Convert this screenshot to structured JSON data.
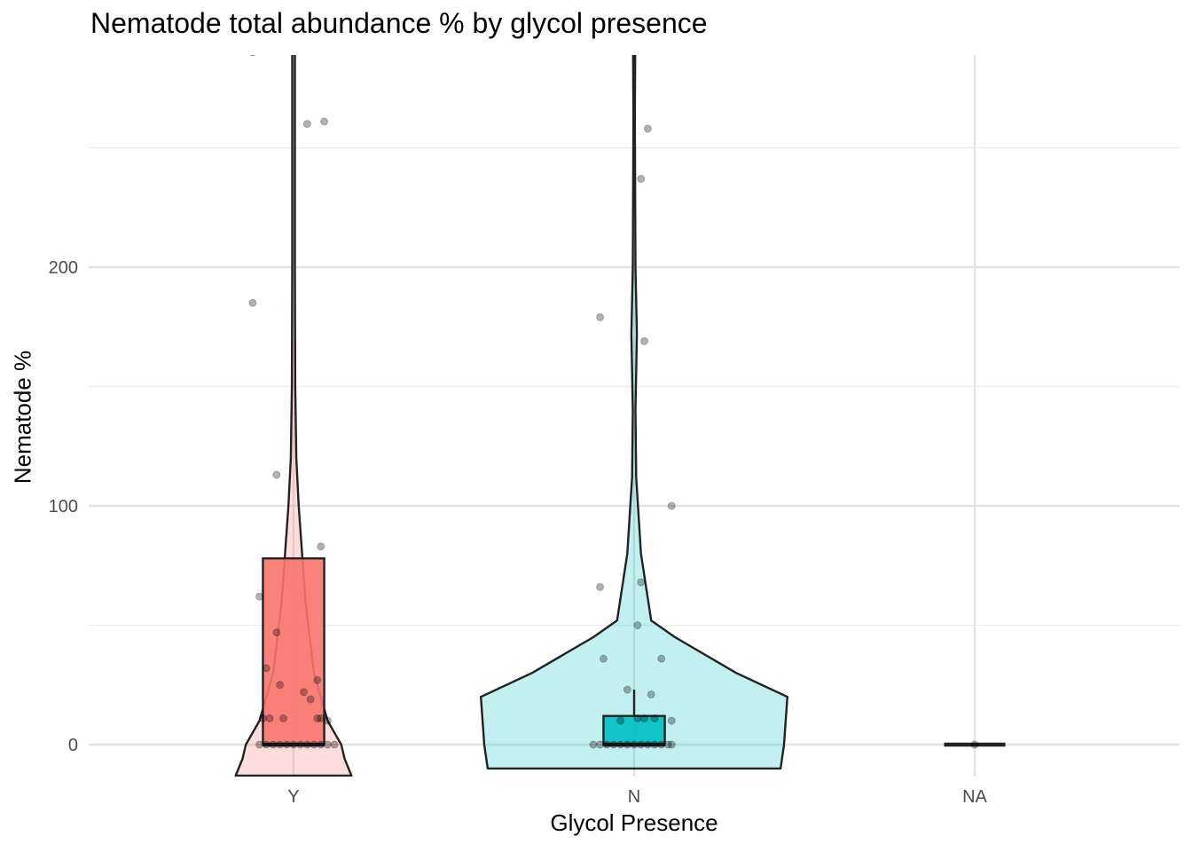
{
  "chart_data": {
    "type": "violin",
    "title": "Nematode total abundance % by glycol presence",
    "xlabel": "Glycol Presence",
    "ylabel": "Nematode %",
    "categories": [
      "Y",
      "N",
      "NA"
    ],
    "ylim": [
      -13,
      290
    ],
    "y_ticks": [
      0,
      100,
      200
    ],
    "grid": true,
    "legend": "none",
    "series": [
      {
        "category": "Y",
        "color": "#F8766D",
        "box": {
          "min": 0,
          "q1": 0,
          "median": 0,
          "q3": 78,
          "max": 78
        },
        "violin_profile": [
          [
            -13,
            0.17
          ],
          [
            -6,
            0.15
          ],
          [
            0,
            0.14
          ],
          [
            10,
            0.1
          ],
          [
            30,
            0.06
          ],
          [
            60,
            0.035
          ],
          [
            80,
            0.025
          ],
          [
            100,
            0.015
          ],
          [
            120,
            0.008
          ],
          [
            150,
            0.005
          ],
          [
            200,
            0.004
          ],
          [
            290,
            0.004
          ]
        ],
        "points": [
          [
            -0.12,
            290
          ],
          [
            0.04,
            260
          ],
          [
            0.09,
            261
          ],
          [
            -0.12,
            185
          ],
          [
            -0.05,
            113
          ],
          [
            0.08,
            83
          ],
          [
            -0.1,
            62
          ],
          [
            -0.05,
            47
          ],
          [
            -0.08,
            32
          ],
          [
            -0.04,
            25
          ],
          [
            0.03,
            22
          ],
          [
            0.05,
            19
          ],
          [
            0.07,
            27
          ],
          [
            -0.09,
            11
          ],
          [
            -0.07,
            11
          ],
          [
            -0.03,
            11
          ],
          [
            0.07,
            11
          ],
          [
            0.08,
            11
          ],
          [
            0.1,
            10
          ],
          [
            -0.1,
            0
          ],
          [
            -0.08,
            0
          ],
          [
            -0.06,
            0
          ],
          [
            -0.04,
            0
          ],
          [
            -0.02,
            0
          ],
          [
            0,
            0
          ],
          [
            0.02,
            0
          ],
          [
            0.04,
            0
          ],
          [
            0.06,
            0
          ],
          [
            0.08,
            0
          ],
          [
            0.1,
            0
          ],
          [
            0.12,
            0
          ]
        ]
      },
      {
        "category": "N",
        "color": "#00BFC4",
        "box": {
          "min": 0,
          "q1": 0,
          "median": 0,
          "q3": 12,
          "max": 23
        },
        "violin_profile": [
          [
            -10,
            0.43
          ],
          [
            0,
            0.44
          ],
          [
            20,
            0.45
          ],
          [
            30,
            0.3
          ],
          [
            45,
            0.12
          ],
          [
            52,
            0.05
          ],
          [
            80,
            0.02
          ],
          [
            112,
            0.006
          ],
          [
            140,
            0.004
          ],
          [
            172,
            0.008
          ],
          [
            200,
            0.004
          ],
          [
            263,
            0.002
          ],
          [
            290,
            0.003
          ]
        ],
        "points": [
          [
            0.04,
            258
          ],
          [
            0.02,
            237
          ],
          [
            -0.1,
            179
          ],
          [
            0.03,
            169
          ],
          [
            0.11,
            100
          ],
          [
            0.02,
            68
          ],
          [
            -0.1,
            66
          ],
          [
            0.01,
            50
          ],
          [
            -0.09,
            36
          ],
          [
            0.08,
            36
          ],
          [
            -0.02,
            23
          ],
          [
            0.05,
            21
          ],
          [
            -0.04,
            10
          ],
          [
            0.01,
            11
          ],
          [
            0.03,
            11
          ],
          [
            0.06,
            11
          ],
          [
            0.11,
            10
          ],
          [
            -0.12,
            0
          ],
          [
            -0.1,
            0
          ],
          [
            -0.08,
            0
          ],
          [
            -0.06,
            0
          ],
          [
            -0.04,
            0
          ],
          [
            -0.02,
            0
          ],
          [
            0,
            0
          ],
          [
            0.02,
            0
          ],
          [
            0.04,
            0
          ],
          [
            0.06,
            0
          ],
          [
            0.08,
            0
          ],
          [
            0.1,
            0
          ],
          [
            0.11,
            0
          ]
        ]
      },
      {
        "category": "NA",
        "color": "#7F7F7F",
        "box": {
          "min": 0,
          "q1": 0,
          "median": 0,
          "q3": 0,
          "max": 0
        },
        "violin_profile": [],
        "points": [
          [
            0,
            0
          ]
        ]
      }
    ]
  }
}
